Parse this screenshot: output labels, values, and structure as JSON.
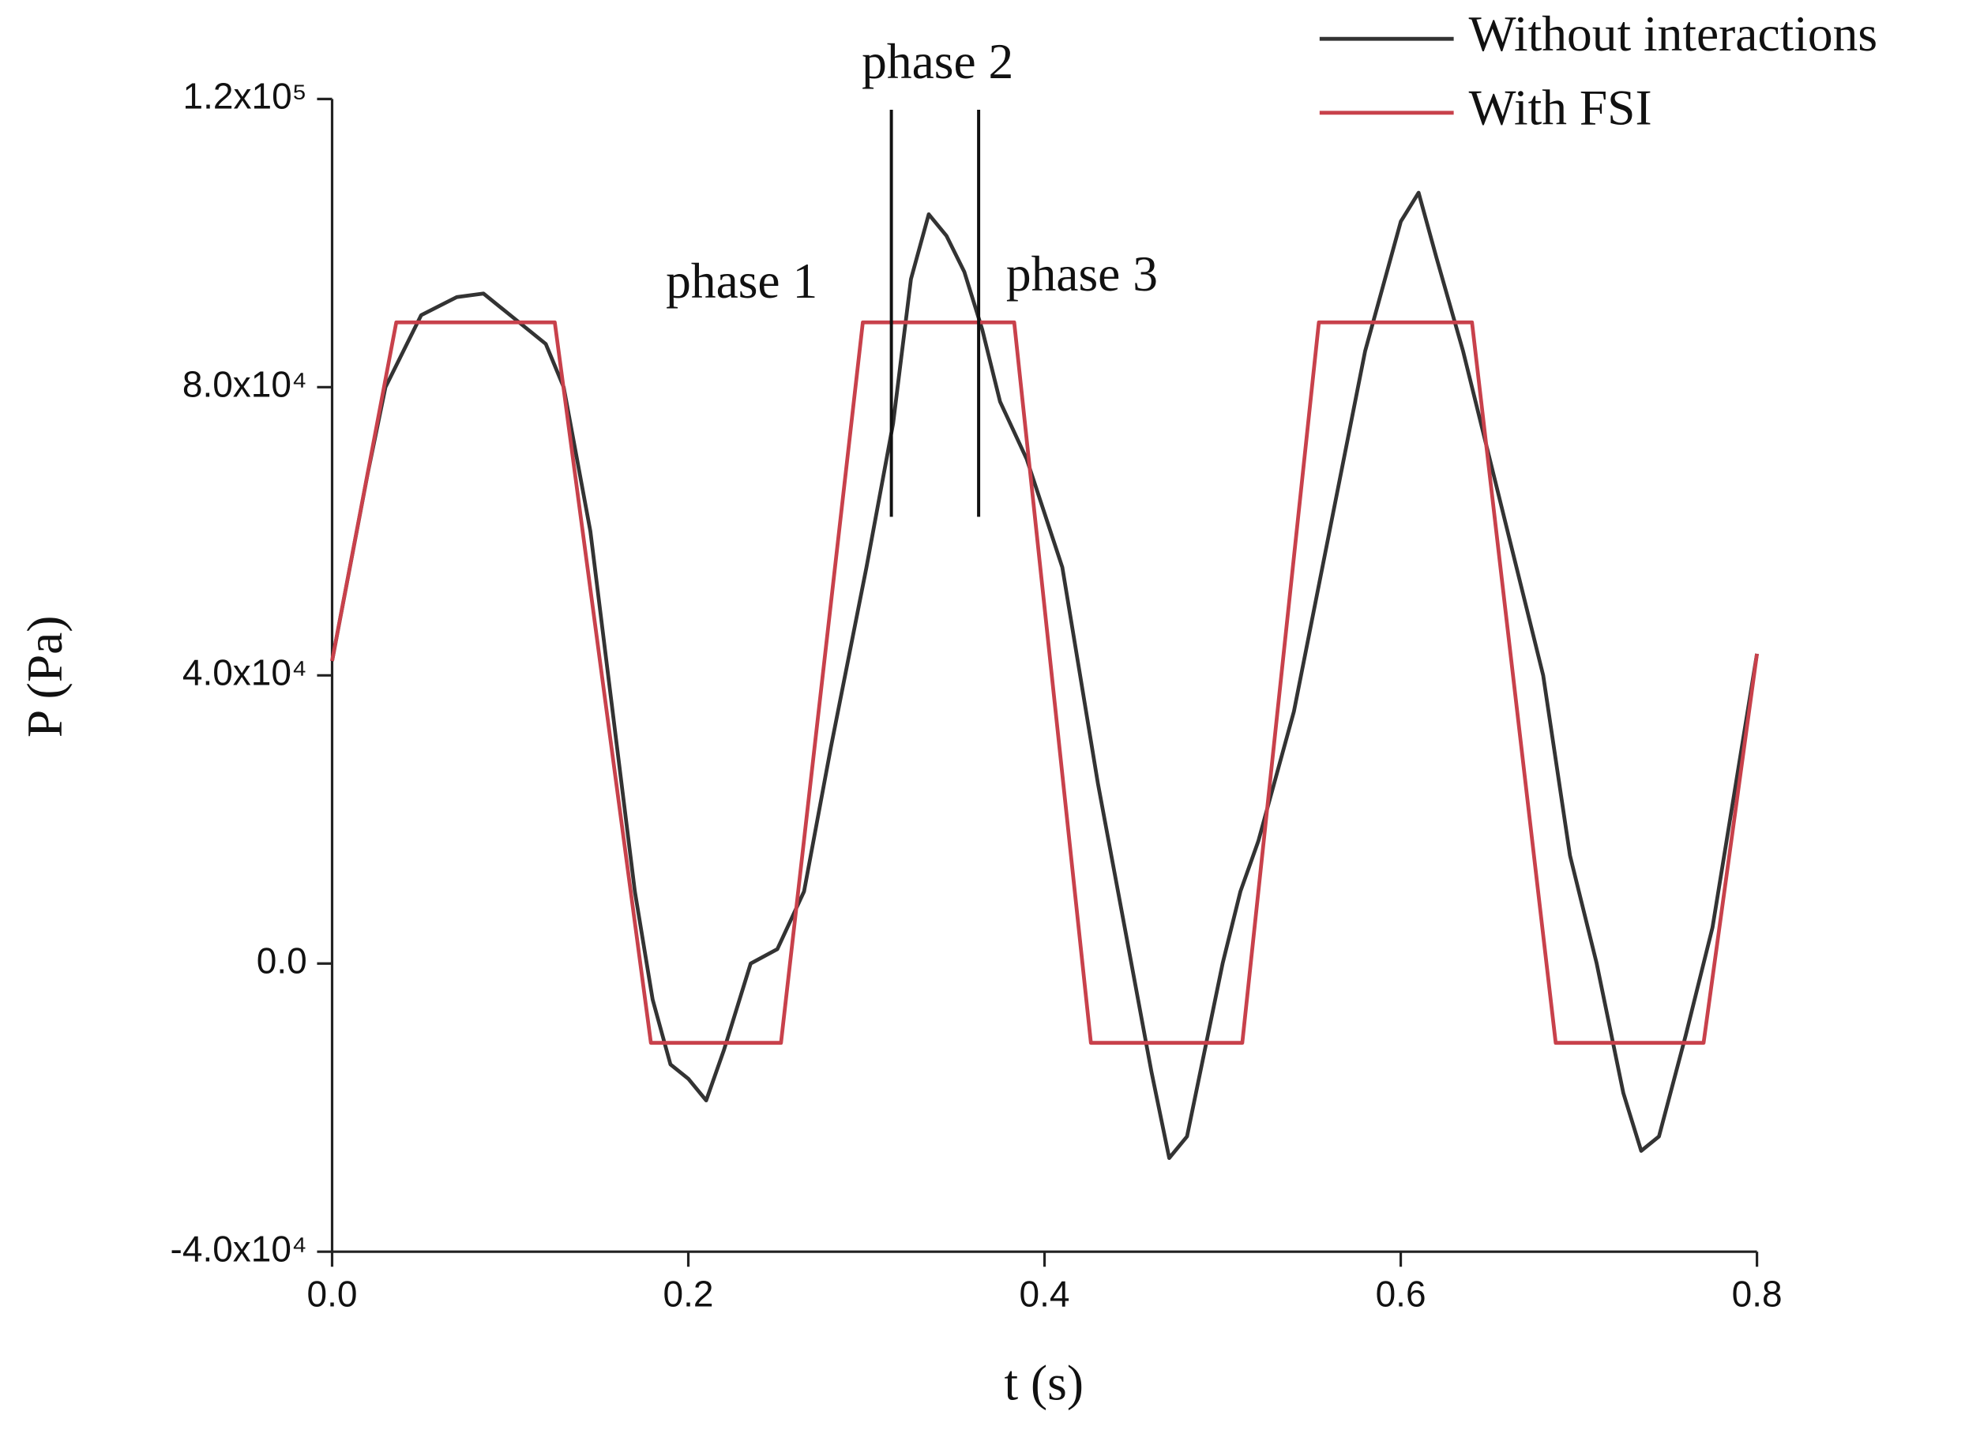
{
  "chart_data": {
    "type": "line",
    "x_label": "t (s)",
    "y_label": "P (Pa)",
    "xlim": [
      0,
      0.8
    ],
    "ylim": [
      -40000,
      120000
    ],
    "xticks": [
      {
        "value": 0,
        "label": "0.0"
      },
      0.2,
      0.4,
      0.6,
      0.8
    ],
    "yticks": [
      {
        "value": -40000,
        "label": "-4.0x10⁴"
      },
      {
        "value": 0,
        "label": "0.0"
      },
      {
        "value": 40000,
        "label": "4.0x10⁴"
      },
      {
        "value": 80000,
        "label": "8.0x10⁴"
      },
      {
        "value": 120000,
        "label": "1.2x10⁵"
      }
    ],
    "legend": "upper right",
    "series": [
      {
        "name": "Without interactions",
        "color": "#333333",
        "x": [
          0,
          0.02,
          0.03,
          0.05,
          0.07,
          0.085,
          0.1,
          0.12,
          0.13,
          0.145,
          0.16,
          0.17,
          0.18,
          0.19,
          0.2,
          0.21,
          0.22,
          0.235,
          0.25,
          0.265,
          0.28,
          0.3,
          0.315,
          0.325,
          0.335,
          0.345,
          0.355,
          0.365,
          0.375,
          0.39,
          0.41,
          0.42,
          0.43,
          0.445,
          0.46,
          0.47,
          0.48,
          0.49,
          0.5,
          0.51,
          0.52,
          0.54,
          0.56,
          0.58,
          0.6,
          0.61,
          0.62,
          0.635,
          0.65,
          0.665,
          0.68,
          0.695,
          0.71,
          0.725,
          0.735,
          0.745,
          0.76,
          0.775,
          0.8
        ],
        "values": [
          42000,
          68000,
          80000,
          90000,
          92500,
          93000,
          90000,
          86000,
          80000,
          60000,
          30000,
          10000,
          -5000,
          -14000,
          -16000,
          -19000,
          -12000,
          0,
          2000,
          10000,
          30000,
          55000,
          75000,
          95000,
          104000,
          101000,
          96000,
          88000,
          78000,
          70000,
          55000,
          40000,
          25000,
          5000,
          -15000,
          -27000,
          -24000,
          -12000,
          0,
          10000,
          17000,
          35000,
          60000,
          85000,
          103000,
          107000,
          98000,
          85000,
          70000,
          55000,
          40000,
          15000,
          0,
          -18000,
          -26000,
          -24000,
          -10000,
          5000,
          43000
        ]
      },
      {
        "name": "With FSI",
        "color": "#c8414b",
        "x": [
          0,
          0.036,
          0.125,
          0.179,
          0.252,
          0.298,
          0.383,
          0.426,
          0.511,
          0.554,
          0.64,
          0.687,
          0.77,
          0.8
        ],
        "values": [
          42000,
          89000,
          89000,
          -11000,
          -11000,
          89000,
          89000,
          -11000,
          -11000,
          89000,
          89000,
          -11000,
          -11000,
          43000
        ]
      }
    ],
    "vlines": [
      {
        "x": 0.314,
        "y": [
          62000,
          118500
        ]
      },
      {
        "x": 0.363,
        "y": [
          62000,
          118500
        ]
      }
    ],
    "annotations": [
      {
        "text": "phase 1",
        "x": 0.23,
        "y": 94000
      },
      {
        "text": "phase 2",
        "x": 0.34,
        "y": 124500
      },
      {
        "text": "phase 3",
        "x": 0.421,
        "y": 95000
      }
    ]
  }
}
